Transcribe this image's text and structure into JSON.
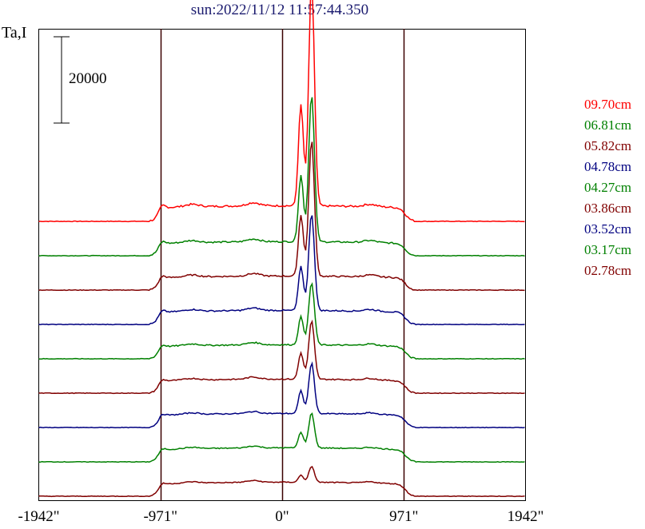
{
  "chart_data": {
    "type": "line",
    "title": "sun:2022/11/12 11:57:44.350",
    "ylabel": "Ta,I",
    "scale_bar_label": "20000",
    "scale_bar_value": 20000,
    "xlim": [
      -1942,
      1942
    ],
    "x_ticks": [
      {
        "value": -1942,
        "label": "-1942\""
      },
      {
        "value": -971,
        "label": "-971\""
      },
      {
        "value": 0,
        "label": "0\""
      },
      {
        "value": 971,
        "label": "971\""
      },
      {
        "value": 1942,
        "label": "1942\""
      }
    ],
    "vertical_lines": [
      -971,
      0,
      971
    ],
    "series": [
      {
        "name": "09.70cm",
        "color": "#ff0000",
        "offset": 8,
        "amp": 1.0,
        "peak": 52000
      },
      {
        "name": "06.81cm",
        "color": "#008000",
        "offset": 7,
        "amp": 0.95,
        "peak": 38000
      },
      {
        "name": "05.82cm",
        "color": "#800000",
        "offset": 6,
        "amp": 0.9,
        "peak": 35000
      },
      {
        "name": "04.78cm",
        "color": "#000080",
        "offset": 5,
        "amp": 0.85,
        "peak": 25000
      },
      {
        "name": "04.27cm",
        "color": "#008000",
        "offset": 4,
        "amp": 0.8,
        "peak": 16000
      },
      {
        "name": "03.86cm",
        "color": "#800000",
        "offset": 3,
        "amp": 0.75,
        "peak": 15000
      },
      {
        "name": "03.52cm",
        "color": "#000080",
        "offset": 2,
        "amp": 0.7,
        "peak": 13000
      },
      {
        "name": "03.17cm",
        "color": "#008000",
        "offset": 1,
        "amp": 0.65,
        "peak": 9000
      },
      {
        "name": "02.78cm",
        "color": "#800000",
        "offset": 0,
        "amp": 0.6,
        "peak": 4000
      }
    ]
  }
}
